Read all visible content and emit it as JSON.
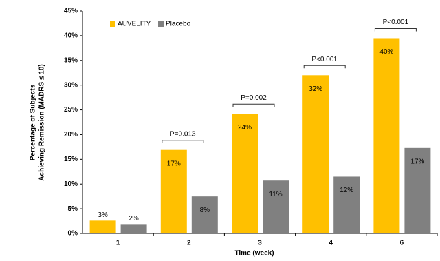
{
  "chart_data": {
    "type": "bar",
    "ylabel": [
      "Percentage of Subjects",
      "Achieving Remission (MADRS ≤ 10)"
    ],
    "xlabel": "Time (week)",
    "categories": [
      "1",
      "2",
      "3",
      "4",
      "6"
    ],
    "series": [
      {
        "name": "AUVELITY",
        "color": "#FFC000",
        "values": [
          2.6,
          16.9,
          24.2,
          32.0,
          39.5
        ],
        "value_labels": [
          "3%",
          "17%",
          "24%",
          "32%",
          "40%"
        ]
      },
      {
        "name": "Placebo",
        "color": "#808080",
        "values": [
          1.9,
          7.5,
          10.7,
          11.5,
          17.3
        ],
        "value_labels": [
          "2%",
          "8%",
          "11%",
          "12%",
          "17%"
        ]
      }
    ],
    "annotations": [
      null,
      "P=0.013",
      "P=0.002",
      "P<0.001",
      "P<0.001"
    ],
    "ylim": [
      0,
      45
    ],
    "yticks": [
      {
        "value": 0,
        "label": "0%"
      },
      {
        "value": 5,
        "label": "5%"
      },
      {
        "value": 10,
        "label": "10%"
      },
      {
        "value": 15,
        "label": "15%"
      },
      {
        "value": 20,
        "label": "20%"
      },
      {
        "value": 25,
        "label": "25%"
      },
      {
        "value": 30,
        "label": "30%"
      },
      {
        "value": 35,
        "label": "35%"
      },
      {
        "value": 40,
        "label": "40%"
      },
      {
        "value": 45,
        "label": "45%"
      }
    ],
    "legend": "top-left"
  }
}
